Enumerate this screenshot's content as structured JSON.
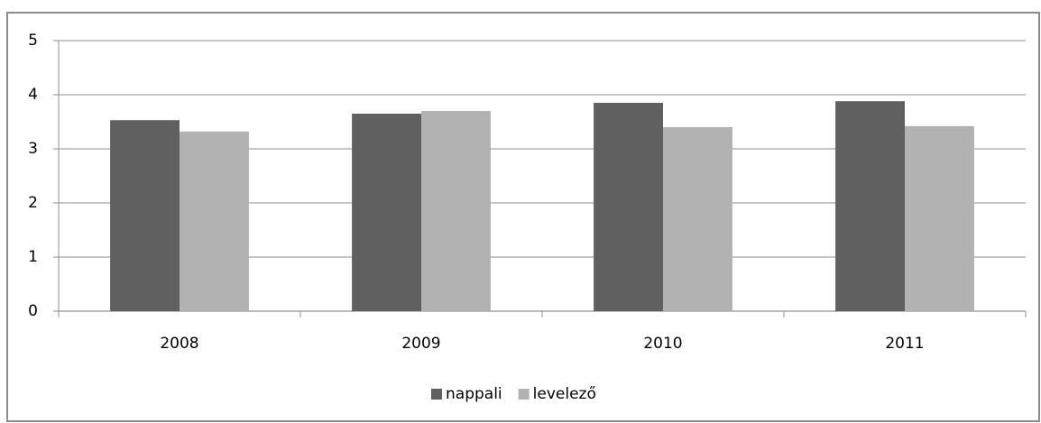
{
  "chart_data": {
    "type": "bar",
    "categories": [
      "2008",
      "2009",
      "2010",
      "2011"
    ],
    "series": [
      {
        "name": "nappali",
        "color": "#606060",
        "values": [
          3.53,
          3.65,
          3.85,
          3.88
        ]
      },
      {
        "name": "levelező",
        "color": "#b2b2b2",
        "values": [
          3.32,
          3.7,
          3.4,
          3.42
        ]
      }
    ],
    "ylim": [
      0,
      5
    ],
    "yticks": [
      0,
      1,
      2,
      3,
      4,
      5
    ],
    "grid": true,
    "legend": "bottom"
  }
}
